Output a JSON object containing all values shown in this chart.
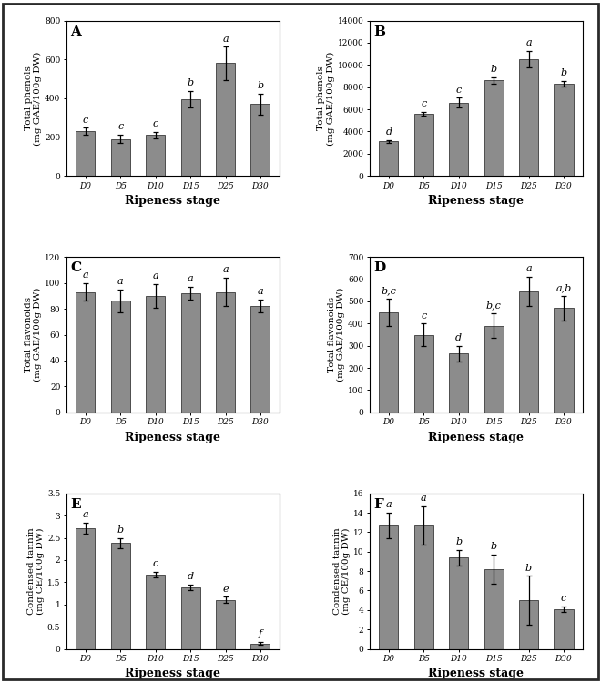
{
  "panels": [
    {
      "label": "A",
      "ylabel": "Total phenols\n(mg GAE/100g DW)",
      "xlabel": "Ripeness stage",
      "categories": [
        "D0",
        "D5",
        "D10",
        "D15",
        "D25",
        "D30"
      ],
      "values": [
        230,
        190,
        210,
        395,
        580,
        370
      ],
      "errors": [
        18,
        22,
        18,
        42,
        85,
        55
      ],
      "sig_labels": [
        "c",
        "c",
        "c",
        "b",
        "a",
        "b"
      ],
      "ylim": [
        0,
        800
      ],
      "yticks": [
        0,
        200,
        400,
        600,
        800
      ]
    },
    {
      "label": "B",
      "ylabel": "Total phenols\n(mg GAE/100g DW)",
      "xlabel": "Ripeness stage",
      "categories": [
        "D0",
        "D5",
        "D10",
        "D15",
        "D25",
        "D30"
      ],
      "values": [
        3100,
        5600,
        6600,
        8600,
        10500,
        8300
      ],
      "errors": [
        150,
        200,
        450,
        300,
        750,
        250
      ],
      "sig_labels": [
        "d",
        "c",
        "c",
        "b",
        "a",
        "b"
      ],
      "ylim": [
        0,
        14000
      ],
      "yticks": [
        0,
        2000,
        4000,
        6000,
        8000,
        10000,
        12000,
        14000
      ]
    },
    {
      "label": "C",
      "ylabel": "Total flavonoids\n(mg GAE/100g DW)",
      "xlabel": "Ripeness stage",
      "categories": [
        "D0",
        "D5",
        "D10",
        "D15",
        "D25",
        "D30"
      ],
      "values": [
        93,
        86,
        90,
        92,
        93,
        82
      ],
      "errors": [
        7,
        9,
        9,
        5,
        11,
        5
      ],
      "sig_labels": [
        "a",
        "a",
        "a",
        "a",
        "a",
        "a"
      ],
      "ylim": [
        0,
        120
      ],
      "yticks": [
        0,
        20,
        40,
        60,
        80,
        100,
        120
      ]
    },
    {
      "label": "D",
      "ylabel": "Total flavonoids\n(mg GAE/100g DW)",
      "xlabel": "Ripeness stage",
      "categories": [
        "D0",
        "D5",
        "D10",
        "D15",
        "D25",
        "D30"
      ],
      "values": [
        450,
        350,
        265,
        390,
        545,
        470
      ],
      "errors": [
        60,
        50,
        35,
        55,
        65,
        55
      ],
      "sig_labels": [
        "b,c",
        "c",
        "d",
        "b,c",
        "a",
        "a,b"
      ],
      "ylim": [
        0,
        700
      ],
      "yticks": [
        0,
        100,
        200,
        300,
        400,
        500,
        600,
        700
      ]
    },
    {
      "label": "E",
      "ylabel": "Condensed tannin\n(mg CE/100g DW)",
      "xlabel": "Ripeness stage",
      "categories": [
        "D0",
        "D5",
        "D10",
        "D15",
        "D25",
        "D30"
      ],
      "values": [
        2.72,
        2.38,
        1.67,
        1.38,
        1.1,
        0.12
      ],
      "errors": [
        0.12,
        0.12,
        0.06,
        0.06,
        0.07,
        0.03
      ],
      "sig_labels": [
        "a",
        "b",
        "c",
        "d",
        "e",
        "f"
      ],
      "ylim": [
        0,
        3.5
      ],
      "yticks": [
        0.0,
        0.5,
        1.0,
        1.5,
        2.0,
        2.5,
        3.0,
        3.5
      ]
    },
    {
      "label": "F",
      "ylabel": "Condensed tannin\n(mg CE/100g DW)",
      "xlabel": "Ripeness stage",
      "categories": [
        "D0",
        "D5",
        "D10",
        "D15",
        "D25",
        "D30"
      ],
      "values": [
        12.7,
        12.7,
        9.4,
        8.2,
        5.0,
        4.1
      ],
      "errors": [
        1.3,
        2.0,
        0.8,
        1.5,
        2.5,
        0.3
      ],
      "sig_labels": [
        "a",
        "a",
        "b",
        "b",
        "b",
        "c"
      ],
      "ylim": [
        0,
        16
      ],
      "yticks": [
        0,
        2,
        4,
        6,
        8,
        10,
        12,
        14,
        16
      ]
    }
  ],
  "bar_color": "#8c8c8c",
  "bar_edgecolor": "#3a3a3a",
  "errorbar_color": "black",
  "sig_fontsize": 8,
  "axis_label_fontsize": 7.5,
  "tick_fontsize": 6.5,
  "panel_label_fontsize": 11,
  "xlabel_fontsize": 9,
  "bar_width": 0.55,
  "figure_background": "#ffffff",
  "outer_border_color": "#2a2a2a"
}
